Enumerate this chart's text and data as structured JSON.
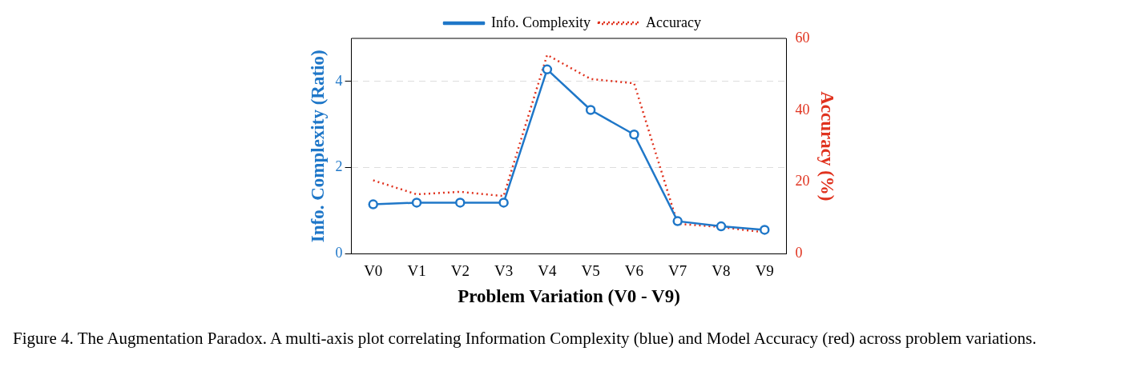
{
  "chart_data": {
    "type": "line",
    "xlabel": "Problem Variation (V0 - V9)",
    "ylabel": "Info. Complexity (Ratio)",
    "y2label": "Accuracy (%)",
    "categories": [
      "V0",
      "V1",
      "V2",
      "V3",
      "V4",
      "V5",
      "V6",
      "V7",
      "V8",
      "V9"
    ],
    "series": [
      {
        "name": "Info. Complexity",
        "color": "#1f77c8",
        "marker": "circle",
        "line_style": "solid",
        "values": [
          1.15,
          1.19,
          1.19,
          1.19,
          4.28,
          3.34,
          2.77,
          0.76,
          0.64,
          0.56
        ]
      },
      {
        "name": "Accuracy",
        "color": "#e0321e",
        "marker": "none",
        "line_style": "dotted",
        "axis": "y2",
        "values": [
          20.5,
          16.6,
          17.3,
          16.1,
          55.4,
          48.7,
          47.5,
          8.4,
          7.5,
          6.0
        ]
      }
    ],
    "ylim": [
      0,
      5
    ],
    "yticks": [
      0,
      2,
      4
    ],
    "y2lim": [
      0,
      60
    ],
    "y2ticks": [
      0,
      20,
      40,
      60
    ],
    "grid": "y",
    "legend": "top",
    "annotations": [
      "Figure 4. The Augmentation Paradox. A multi-axis plot correlating Information Complexity (blue) and Model Accuracy (red) across problem variations."
    ]
  }
}
